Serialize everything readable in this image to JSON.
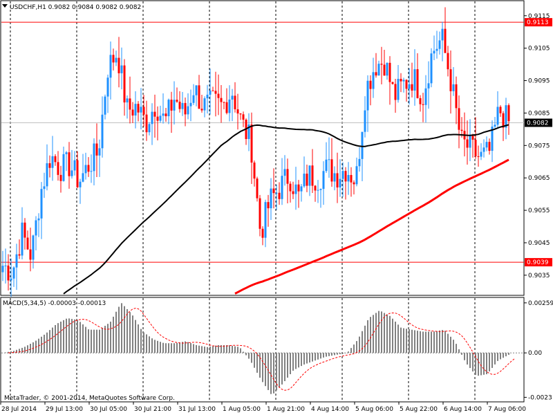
{
  "window": {
    "symbol_label": "USDCHF,H1  0.9082 0.9084 0.9082 0.9082",
    "copyright": "MetaTrader, © 2001-2014, MetaQuotes Software Corp."
  },
  "chart_data": {
    "type": "candlestick",
    "price_ticks": [
      "0.9115",
      "0.9105",
      "0.9095",
      "0.9085",
      "0.9075",
      "0.9065",
      "0.9055",
      "0.9045",
      "0.9035"
    ],
    "price_ylim": [
      0.9029,
      0.9119
    ],
    "x_ticks": [
      "28 Jul 2014",
      "29 Jul 13:00",
      "30 Jul 05:00",
      "30 Jul 21:00",
      "31 Jul 13:00",
      "1 Aug 05:00",
      "1 Aug 21:00",
      "4 Aug 14:00",
      "5 Aug 06:00",
      "5 Aug 22:00",
      "6 Aug 14:00",
      "7 Aug 06:00"
    ],
    "h_lines": [
      {
        "value": 0.9113,
        "label": "0.9113",
        "color": "#ff0000"
      },
      {
        "value": 0.9039,
        "label": "0.9039",
        "color": "#ff0000"
      }
    ],
    "current_price": {
      "value": 0.9082,
      "label": "0.9082"
    },
    "bull_color": "#1e90ff",
    "bear_color": "#ff0000",
    "ma_fast_color": "#000000",
    "ma_slow_color": "#ff0000",
    "key_prices": [
      0.9038,
      0.9036,
      0.9048,
      0.9041,
      0.9061,
      0.9072,
      0.9068,
      0.9069,
      0.9064,
      0.9069,
      0.9073,
      0.9099,
      0.9104,
      0.9086,
      0.9087,
      0.9082,
      0.9088,
      0.9082,
      0.909,
      0.9084,
      0.9093,
      0.9087,
      0.9088,
      0.9087,
      0.9092,
      0.9082,
      0.9076,
      0.9048,
      0.9058,
      0.9062,
      0.9066,
      0.9059,
      0.9066,
      0.9065,
      0.9068,
      0.9066,
      0.9068,
      0.9064,
      0.9092,
      0.91,
      0.9101,
      0.909,
      0.9094,
      0.9096,
      0.909,
      0.9104,
      0.9108,
      0.9094,
      0.9076,
      0.9074,
      0.9071,
      0.9073,
      0.9086,
      0.9082
    ],
    "macd": {
      "label": "MACD(5,34,5) -0.00003 -0.00013",
      "ticks": [
        "0.00259",
        "0.00",
        "-0.0023"
      ],
      "ylim": [
        -0.0025,
        0.0028
      ],
      "hist_color": "#808080",
      "signal_color": "#ff0000",
      "hist_keys": [
        0.0,
        0.0001,
        0.0003,
        0.0006,
        0.001,
        0.0015,
        0.0018,
        0.0017,
        0.0012,
        0.0012,
        0.0016,
        0.0026,
        0.002,
        0.0011,
        0.0007,
        0.0005,
        0.0005,
        0.0006,
        0.0004,
        0.0003,
        0.0004,
        0.0004,
        0.0003,
        -0.0004,
        -0.0014,
        -0.0022,
        -0.0016,
        -0.0009,
        -0.0006,
        -0.0004,
        -0.0002,
        -0.0001,
        0.0,
        0.0007,
        0.0018,
        0.0022,
        0.0019,
        0.0013,
        0.0012,
        0.0011,
        0.0011,
        0.0012,
        0.0006,
        -0.0005,
        -0.0012,
        -0.0011,
        -0.0004,
        -0.0001
      ]
    }
  }
}
